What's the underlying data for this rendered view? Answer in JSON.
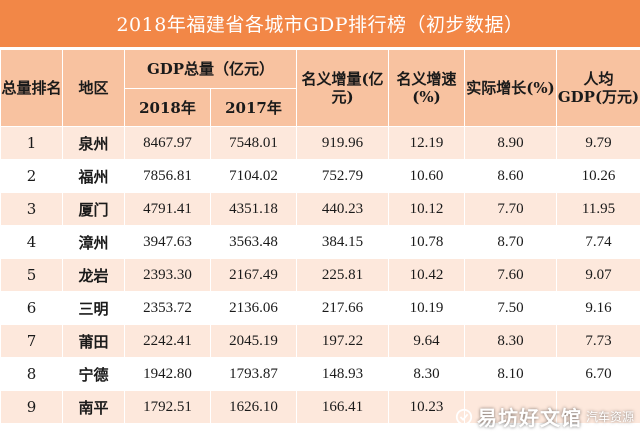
{
  "title": "2018年福建省各城市GDP排行榜（初步数据）",
  "columns": {
    "rank": "总量排名",
    "region": "地区",
    "gdp_total": "GDP总量（亿元）",
    "year_2018": "2018年",
    "year_2017": "2017年",
    "nominal_increase": "名义增量(亿元)",
    "nominal_growth": "名义增速(%)",
    "real_growth": "实际增长(%)",
    "per_capita": "人均GDP(万元)"
  },
  "rows": [
    {
      "rank": "1",
      "region": "泉州",
      "gdp2018": "8467.97",
      "gdp2017": "7548.01",
      "increase": "919.96",
      "nominal": "12.19",
      "real": "8.90",
      "per_capita": "9.79"
    },
    {
      "rank": "2",
      "region": "福州",
      "gdp2018": "7856.81",
      "gdp2017": "7104.02",
      "increase": "752.79",
      "nominal": "10.60",
      "real": "8.60",
      "per_capita": "10.26"
    },
    {
      "rank": "3",
      "region": "厦门",
      "gdp2018": "4791.41",
      "gdp2017": "4351.18",
      "increase": "440.23",
      "nominal": "10.12",
      "real": "7.70",
      "per_capita": "11.95"
    },
    {
      "rank": "4",
      "region": "漳州",
      "gdp2018": "3947.63",
      "gdp2017": "3563.48",
      "increase": "384.15",
      "nominal": "10.78",
      "real": "8.70",
      "per_capita": "7.74"
    },
    {
      "rank": "5",
      "region": "龙岩",
      "gdp2018": "2393.30",
      "gdp2017": "2167.49",
      "increase": "225.81",
      "nominal": "10.42",
      "real": "7.60",
      "per_capita": "9.07"
    },
    {
      "rank": "6",
      "region": "三明",
      "gdp2018": "2353.72",
      "gdp2017": "2136.06",
      "increase": "217.66",
      "nominal": "10.19",
      "real": "7.50",
      "per_capita": "9.16"
    },
    {
      "rank": "7",
      "region": "莆田",
      "gdp2018": "2242.41",
      "gdp2017": "2045.19",
      "increase": "197.22",
      "nominal": "9.64",
      "real": "8.30",
      "per_capita": "7.73"
    },
    {
      "rank": "8",
      "region": "宁德",
      "gdp2018": "1942.80",
      "gdp2017": "1793.87",
      "increase": "148.93",
      "nominal": "8.30",
      "real": "8.10",
      "per_capita": "6.70"
    },
    {
      "rank": "9",
      "region": "南平",
      "gdp2018": "1792.51",
      "gdp2017": "1626.10",
      "increase": "166.41",
      "nominal": "10.23",
      "real": "",
      "per_capita": ""
    }
  ],
  "watermark": {
    "main": "易坊好文馆",
    "sub": "汽车资源"
  },
  "colors": {
    "title_bg": "#f28747",
    "header_bg": "#f8c2a0",
    "stripe_bg": "#fde8dc",
    "text": "#1a1a1a"
  }
}
